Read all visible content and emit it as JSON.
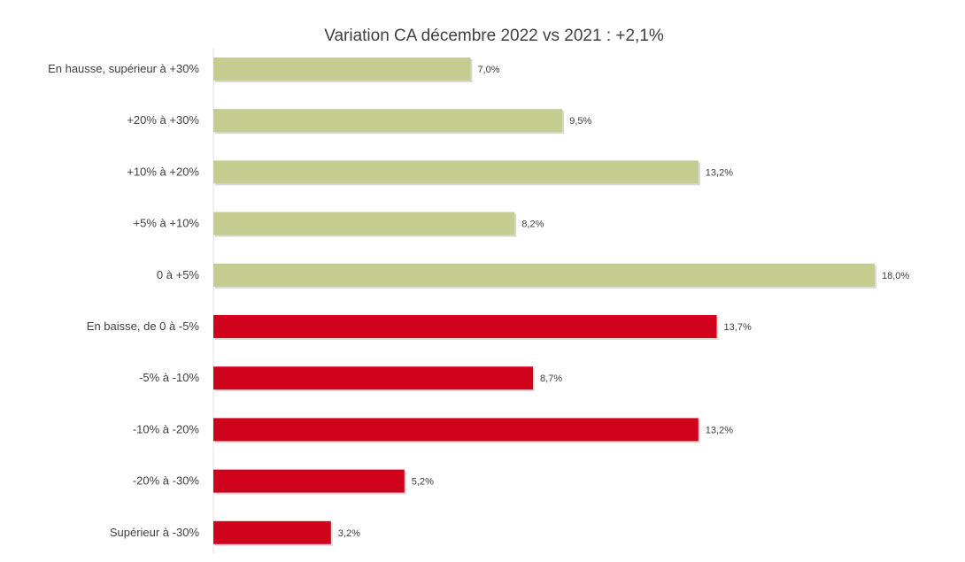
{
  "chart_data": {
    "type": "bar",
    "orientation": "horizontal",
    "title": "Variation CA décembre 2022 vs 2021 : +2,1%",
    "xlabel": "",
    "ylabel": "",
    "xlim": [
      0,
      15.5
    ],
    "grid": false,
    "legend": "none",
    "colors": {
      "positive": "#c4cc8f",
      "negative": "#d0021b"
    },
    "categories": [
      "En hausse, supérieur à +30%",
      "+20% à +30%",
      "+10% à +20%",
      "+5% à +10%",
      "0 à +5%",
      "En baisse, de 0 à -5%",
      "-5% à -10%",
      "-10% à -20%",
      "-20% à -30%",
      "Supérieur à -30%"
    ],
    "values": [
      7.0,
      9.5,
      13.2,
      8.2,
      18.0,
      13.7,
      8.7,
      13.2,
      5.2,
      3.2
    ],
    "value_labels": [
      "7,0%",
      "9,5%",
      "13,2%",
      "8,2%",
      "18,0%",
      "13,7%",
      "8,7%",
      "13,2%",
      "5,2%",
      "3,2%"
    ],
    "groups": [
      "positive",
      "positive",
      "positive",
      "positive",
      "positive",
      "negative",
      "negative",
      "negative",
      "negative",
      "negative"
    ]
  }
}
